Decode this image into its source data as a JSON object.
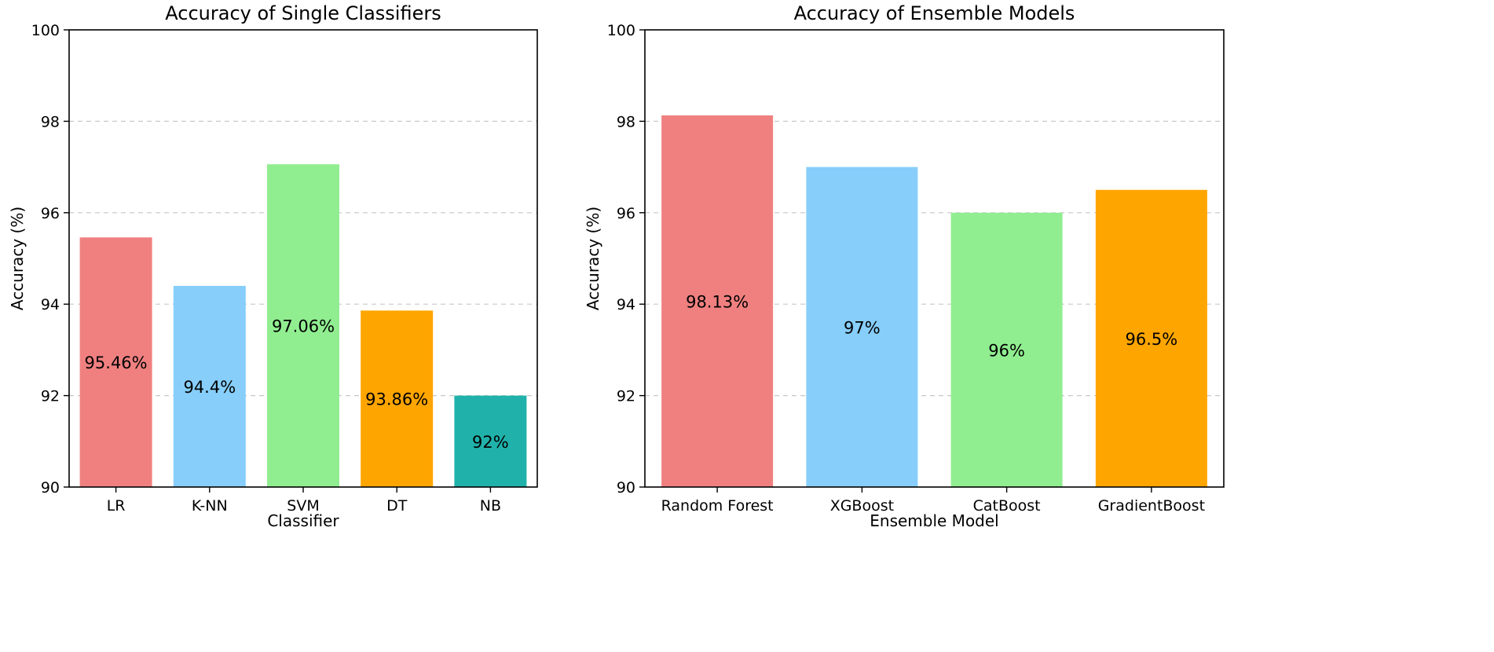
{
  "chart_data": [
    {
      "type": "bar",
      "title": "Accuracy of Single Classifiers",
      "xlabel": "Classifier",
      "ylabel": "Accuracy (%)",
      "categories": [
        "LR",
        "K-NN",
        "SVM",
        "DT",
        "NB"
      ],
      "values": [
        95.46,
        94.4,
        97.06,
        93.86,
        92
      ],
      "data_labels": [
        "95.46%",
        "94.4%",
        "97.06%",
        "93.86%",
        "92%"
      ],
      "colors": [
        "#f08080",
        "#87cefa",
        "#90ee90",
        "#ffa500",
        "#20b2aa"
      ],
      "ylim": [
        90,
        100
      ],
      "yticks": [
        90,
        92,
        94,
        96,
        98,
        100
      ],
      "grid": "y-dashed"
    },
    {
      "type": "bar",
      "title": "Accuracy of Ensemble Models",
      "xlabel": "Ensemble Model",
      "ylabel": "Accuracy (%)",
      "categories": [
        "Random Forest",
        "XGBoost",
        "CatBoost",
        "GradientBoost"
      ],
      "values": [
        98.13,
        97,
        96,
        96.5
      ],
      "data_labels": [
        "98.13%",
        "97%",
        "96%",
        "96.5%"
      ],
      "colors": [
        "#f08080",
        "#87cefa",
        "#90ee90",
        "#ffa500"
      ],
      "ylim": [
        90,
        100
      ],
      "yticks": [
        90,
        92,
        94,
        96,
        98,
        100
      ],
      "grid": "y-dashed"
    }
  ]
}
